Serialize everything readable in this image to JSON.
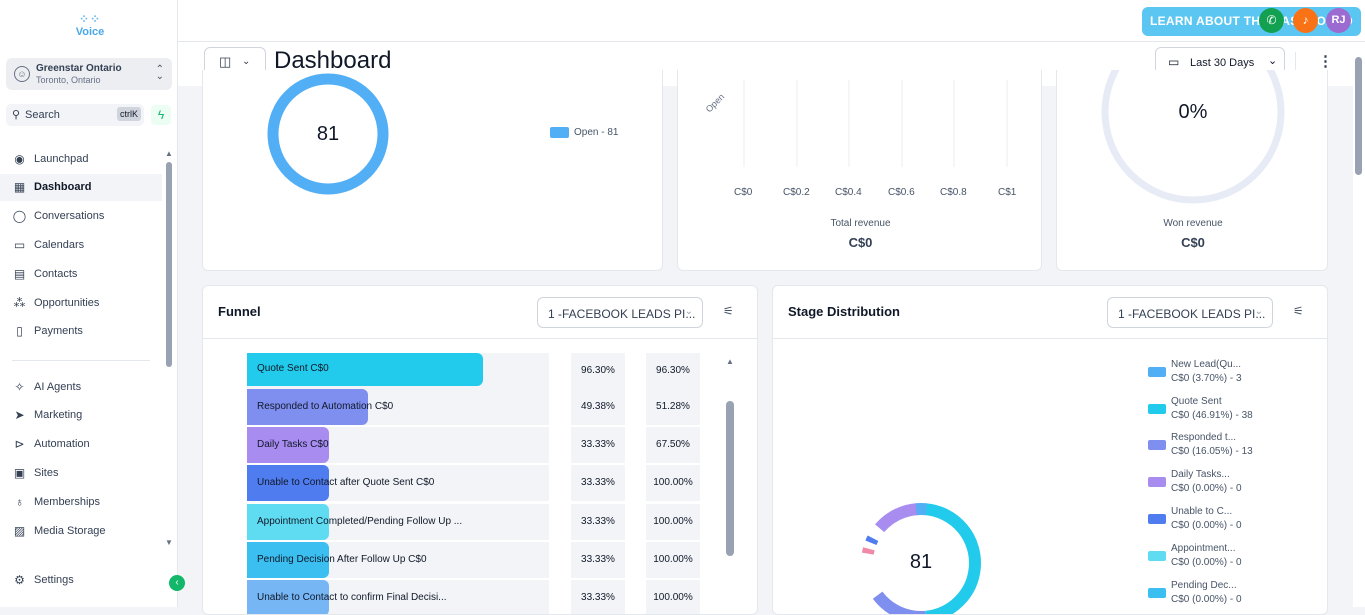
{
  "sidebar": {
    "logo": "Voice",
    "account": {
      "name": "Greenstar Ontario",
      "location": "Toronto, Ontario"
    },
    "search": {
      "label": "Search",
      "shortcut": "ctrlK"
    },
    "nav": [
      {
        "label": "Launchpad",
        "icon": "rocket-icon"
      },
      {
        "label": "Dashboard",
        "icon": "grid-icon"
      },
      {
        "label": "Conversations",
        "icon": "chat-icon"
      },
      {
        "label": "Calendars",
        "icon": "calendar-icon"
      },
      {
        "label": "Contacts",
        "icon": "contacts-icon"
      },
      {
        "label": "Opportunities",
        "icon": "opportunities-icon"
      },
      {
        "label": "Payments",
        "icon": "payments-icon"
      },
      {
        "label": "AI Agents",
        "icon": "sparkle-icon"
      },
      {
        "label": "Marketing",
        "icon": "send-icon"
      },
      {
        "label": "Automation",
        "icon": "automation-icon"
      },
      {
        "label": "Sites",
        "icon": "sites-icon"
      },
      {
        "label": "Memberships",
        "icon": "memberships-icon"
      },
      {
        "label": "Media Storage",
        "icon": "media-icon"
      }
    ],
    "settings": "Settings"
  },
  "topbar": {
    "learn_button": "LEARN ABOUT THE DASHBOARD",
    "avatar": "RJ",
    "colors": {
      "phone": "#12a150",
      "bell": "#f97316",
      "avatar": "#9b6bd1"
    }
  },
  "header": {
    "title": "Dashboard",
    "date_range": "Last 30 Days"
  },
  "cards": {
    "opportunity": {
      "center_value": "81",
      "legend": "Open - 81",
      "color": "#52aef5"
    },
    "revenue": {
      "rotated_label": "Open",
      "ticks": [
        "C$0",
        "C$0.2",
        "C$0.4",
        "C$0.6",
        "C$0.8",
        "C$1"
      ],
      "label": "Total revenue",
      "value": "C$0"
    },
    "won": {
      "percent": "0%",
      "label": "Won revenue",
      "value": "C$0"
    }
  },
  "funnel": {
    "title": "Funnel",
    "pipeline": "1 -FACEBOOK LEADS PI...",
    "rows": [
      {
        "label": "Quote Sent   C$0",
        "fill": 0.78,
        "color": "#22cbeb",
        "pct1": "96.30%",
        "pct2": "96.30%"
      },
      {
        "label": "Responded to Automation   C$0",
        "fill": 0.4,
        "color": "#7f8ff0",
        "pct1": "49.38%",
        "pct2": "51.28%"
      },
      {
        "label": "Daily Tasks   C$0",
        "fill": 0.27,
        "color": "#a88cf0",
        "pct1": "33.33%",
        "pct2": "67.50%"
      },
      {
        "label": "Unable to Contact after Quote Sent   C$0",
        "fill": 0.27,
        "color": "#4f7df0",
        "pct1": "33.33%",
        "pct2": "100.00%"
      },
      {
        "label": "Appointment Completed/Pending Follow Up  ...",
        "fill": 0.27,
        "color": "#5fdcf2",
        "pct1": "33.33%",
        "pct2": "100.00%"
      },
      {
        "label": "Pending Decision After Follow Up   C$0",
        "fill": 0.27,
        "color": "#3bbff0",
        "pct1": "33.33%",
        "pct2": "100.00%"
      },
      {
        "label": "Unable to Contact to confirm Final Decisi...",
        "fill": 0.27,
        "color": "#76b6f5",
        "pct1": "33.33%",
        "pct2": "100.00%"
      }
    ]
  },
  "stage": {
    "title": "Stage Distribution",
    "pipeline": "1 -FACEBOOK LEADS PI...",
    "center_value": "81",
    "legend": [
      {
        "name": "New Lead(Qu...",
        "detail": "C$0 (3.70%) - 3",
        "color": "#52aef5"
      },
      {
        "name": "Quote Sent",
        "detail": "C$0 (46.91%) - 38",
        "color": "#22cbeb"
      },
      {
        "name": "Responded t...",
        "detail": "C$0 (16.05%) - 13",
        "color": "#7f8ff0"
      },
      {
        "name": "Daily Tasks...",
        "detail": "C$0 (0.00%) - 0",
        "color": "#a88cf0"
      },
      {
        "name": "Unable to C...",
        "detail": "C$0 (0.00%) - 0",
        "color": "#4f7df0"
      },
      {
        "name": "Appointment...",
        "detail": "C$0 (0.00%) - 0",
        "color": "#5fdcf2"
      },
      {
        "name": "Pending Dec...",
        "detail": "C$0 (0.00%) - 0",
        "color": "#3bbff0"
      }
    ]
  }
}
